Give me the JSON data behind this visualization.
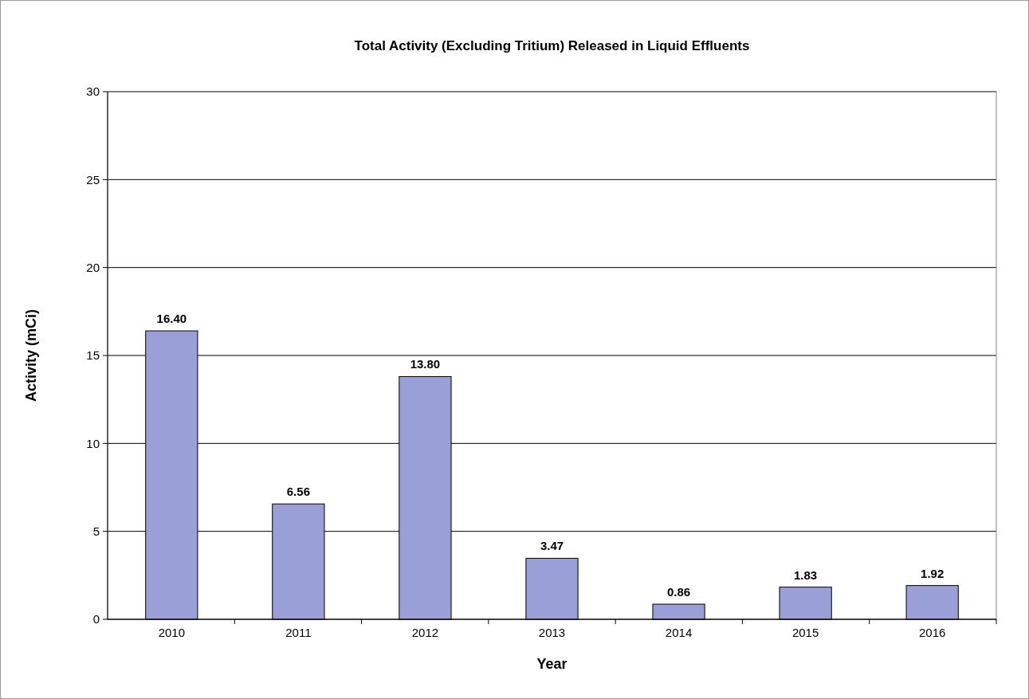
{
  "chart_data": {
    "type": "bar",
    "title": "Total Activity (Excluding Tritium) Released in Liquid Effluents",
    "xlabel": "Year",
    "ylabel": "Activity (mCi)",
    "categories": [
      "2010",
      "2011",
      "2012",
      "2013",
      "2014",
      "2015",
      "2016"
    ],
    "values": [
      16.4,
      6.56,
      13.8,
      3.47,
      0.86,
      1.83,
      1.92
    ],
    "value_labels": [
      "16.40",
      "6.56",
      "13.80",
      "3.47",
      "0.86",
      "1.83",
      "1.92"
    ],
    "color": "#9b9fd8",
    "ylim": [
      0,
      30
    ],
    "yticks": [
      0,
      5,
      10,
      15,
      20,
      25,
      30
    ],
    "grid": "y"
  }
}
